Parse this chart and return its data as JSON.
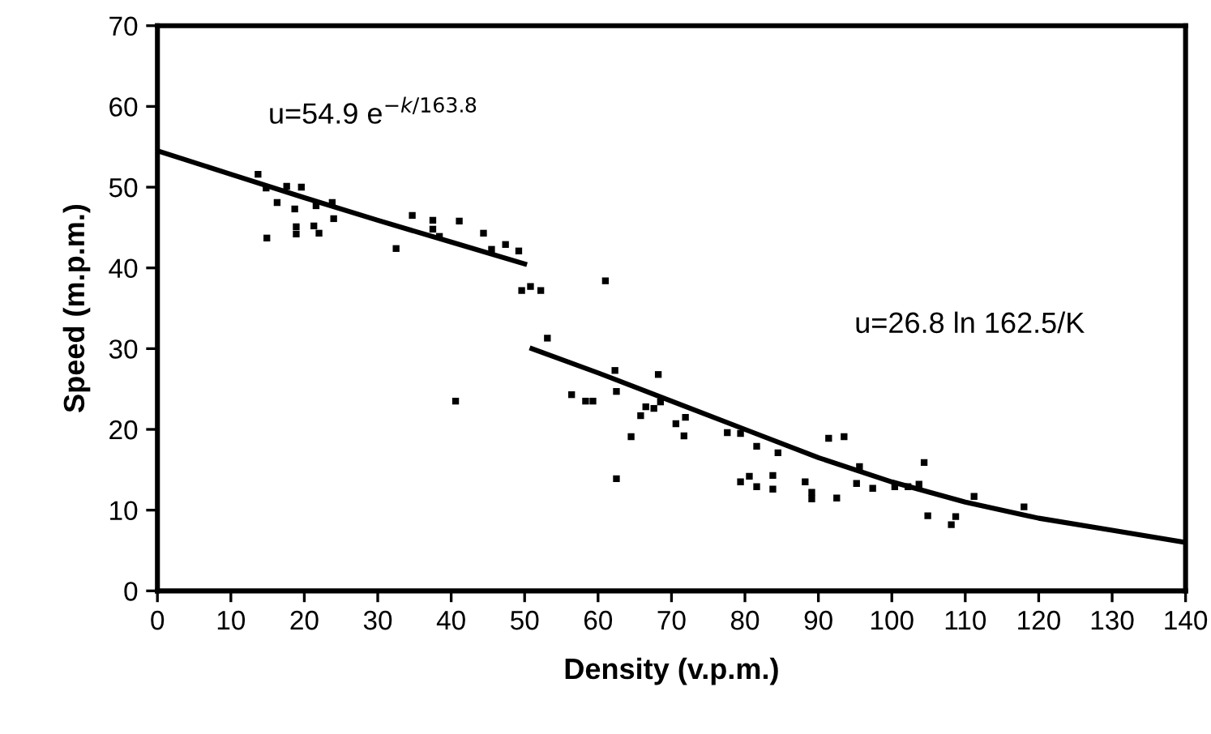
{
  "chart_data": {
    "type": "scatter",
    "xlabel": "Density (v.p.m.)",
    "ylabel": "Speed (m.p.m.)",
    "xlim": [
      0,
      140
    ],
    "xticks": [
      0,
      10,
      20,
      30,
      40,
      50,
      60,
      70,
      80,
      90,
      100,
      110,
      120,
      130,
      140
    ],
    "ylim": [
      0,
      70
    ],
    "yticks": [
      0,
      10,
      20,
      30,
      40,
      50,
      60,
      70
    ],
    "grid": false,
    "legend": false,
    "series": [
      {
        "color": "#000000",
        "marker": "square",
        "x": [
          13.7,
          14.8,
          17.6,
          19.6,
          16.3,
          18.7,
          21.6,
          23.8,
          14.9,
          18.9,
          18.9,
          21.3,
          22.0,
          24.0,
          32.5,
          34.7,
          37.5,
          37.5,
          38.4,
          41.1,
          44.4,
          47.4,
          49.2,
          45.5,
          49.6,
          50.8,
          52.2,
          61.0,
          53.1,
          40.6,
          62.3,
          68.2,
          56.4,
          58.3,
          59.3,
          62.5,
          65.8,
          66.5,
          67.6,
          68.5,
          64.5,
          62.5,
          70.6,
          71.9,
          71.7,
          77.6,
          79.4,
          81.6,
          84.5,
          79.4,
          80.6,
          81.6,
          83.8,
          83.8,
          88.2,
          89.1,
          89.1,
          92.5,
          91.4,
          93.5,
          95.2,
          97.4,
          95.6,
          100.4,
          102.2,
          103.7,
          104.4,
          104.9,
          108.1,
          108.7,
          111.2,
          118.0
        ],
        "values": [
          51.6,
          49.9,
          50.1,
          50.0,
          48.1,
          47.3,
          47.7,
          48.1,
          43.7,
          45.1,
          44.2,
          45.2,
          44.3,
          46.1,
          42.4,
          46.5,
          45.9,
          44.8,
          43.9,
          45.8,
          44.3,
          42.9,
          42.1,
          42.3,
          37.2,
          37.7,
          37.2,
          38.4,
          31.3,
          23.5,
          27.3,
          26.8,
          24.3,
          23.5,
          23.5,
          24.7,
          21.7,
          22.8,
          22.6,
          23.4,
          19.1,
          13.9,
          20.7,
          21.5,
          19.2,
          19.6,
          19.5,
          17.9,
          17.1,
          13.5,
          14.2,
          12.9,
          14.3,
          12.6,
          13.5,
          12.2,
          11.4,
          11.5,
          18.9,
          19.1,
          13.3,
          12.7,
          15.4,
          12.9,
          12.9,
          13.2,
          15.9,
          9.3,
          8.2,
          9.2,
          11.7,
          10.4
        ]
      },
      {
        "type": "line",
        "color": "#000000",
        "marker": "none",
        "line_style": "solid",
        "x": [
          0,
          10,
          20,
          30,
          40,
          50
        ],
        "values": [
          54.5,
          51.6,
          48.7,
          45.9,
          43.2,
          40.5
        ]
      },
      {
        "type": "line",
        "color": "#000000",
        "marker": "none",
        "line_style": "solid",
        "x": [
          51,
          60,
          70,
          80,
          90,
          100,
          110,
          120,
          130,
          140
        ],
        "values": [
          30,
          27,
          23.5,
          20,
          16.5,
          13.5,
          11,
          9,
          7.5,
          6
        ]
      }
    ],
    "annotations": [
      "u=54.9 e$^{−k/163.8}$",
      "u=26.8 ln 162.5/K"
    ]
  }
}
